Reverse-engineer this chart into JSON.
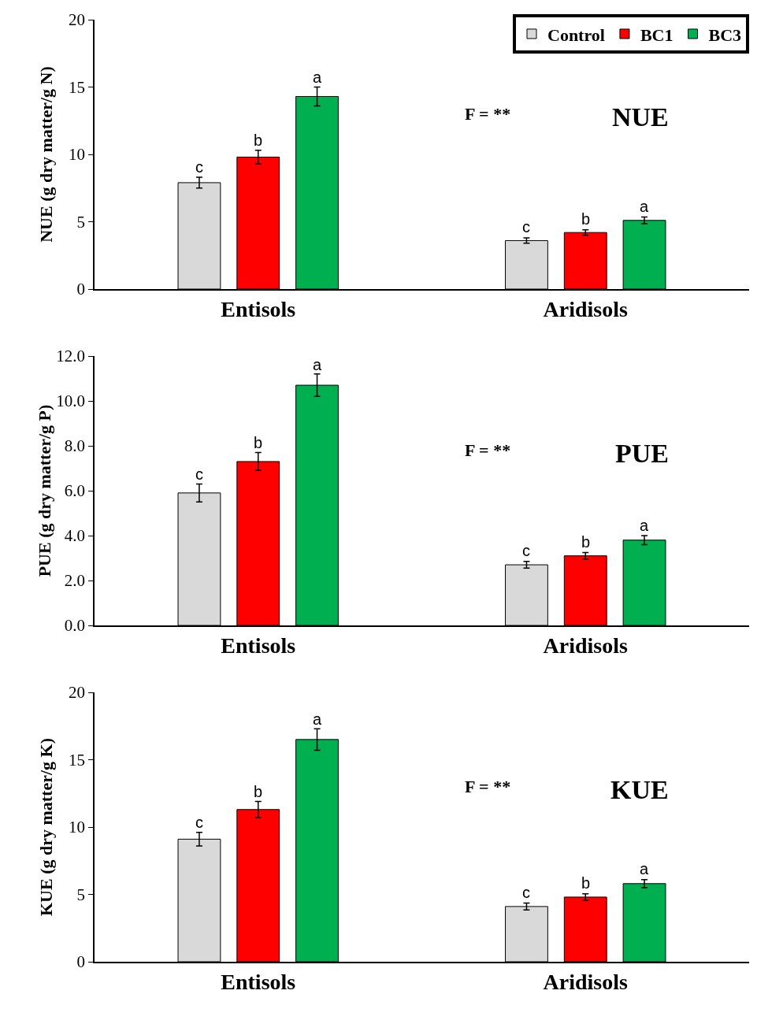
{
  "chart_data": [
    {
      "type": "bar",
      "ylabel": "NUE (g dry matter/g N)",
      "categories": [
        "Entisols",
        "Aridisols"
      ],
      "ylim": [
        0,
        20
      ],
      "yticks": [
        0,
        5,
        10,
        15,
        20
      ],
      "grid": false,
      "legend": "top right",
      "series": [
        {
          "name": "Control",
          "color": "#d9d9d9",
          "values": [
            7.9,
            3.6
          ],
          "errors": [
            0.4,
            0.2
          ]
        },
        {
          "name": "BC1",
          "color": "#ff0000",
          "values": [
            9.8,
            4.2
          ],
          "errors": [
            0.5,
            0.2
          ]
        },
        {
          "name": "BC3",
          "color": "#00b050",
          "values": [
            14.3,
            5.1
          ],
          "errors": [
            0.7,
            0.25
          ]
        }
      ],
      "annotations": [
        "c",
        "b",
        "a",
        "c",
        "b",
        "a",
        "F = **",
        "NUE"
      ]
    },
    {
      "type": "bar",
      "ylabel": "PUE (g dry matter/g P)",
      "categories": [
        "Entisols",
        "Aridisols"
      ],
      "ylim": [
        0,
        12
      ],
      "yticks": [
        {
          "value": 0,
          "label": "0.0"
        },
        {
          "value": 2,
          "label": "2.0"
        },
        {
          "value": 4,
          "label": "4.0"
        },
        {
          "value": 6,
          "label": "6.0"
        },
        {
          "value": 8,
          "label": "8.0"
        },
        {
          "value": 10,
          "label": "10.0"
        },
        {
          "value": 12,
          "label": "12.0"
        }
      ],
      "grid": false,
      "series": [
        {
          "color": "#d9d9d9",
          "values": [
            5.9,
            2.7
          ],
          "errors": [
            0.4,
            0.15
          ]
        },
        {
          "color": "#ff0000",
          "values": [
            7.3,
            3.1
          ],
          "errors": [
            0.4,
            0.15
          ]
        },
        {
          "color": "#00b050",
          "values": [
            10.7,
            3.8
          ],
          "errors": [
            0.5,
            0.2
          ]
        }
      ],
      "annotations": [
        "c",
        "b",
        "a",
        "c",
        "b",
        "a",
        "F = **",
        "PUE"
      ]
    },
    {
      "type": "bar",
      "ylabel": "KUE (g dry matter/g K)",
      "categories": [
        "Entisols",
        "Aridisols"
      ],
      "ylim": [
        0,
        20
      ],
      "yticks": [
        0,
        5,
        10,
        15,
        20
      ],
      "grid": false,
      "series": [
        {
          "color": "#d9d9d9",
          "values": [
            9.1,
            4.1
          ],
          "errors": [
            0.5,
            0.25
          ]
        },
        {
          "color": "#ff0000",
          "values": [
            11.3,
            4.8
          ],
          "errors": [
            0.6,
            0.25
          ]
        },
        {
          "color": "#00b050",
          "values": [
            16.5,
            5.8
          ],
          "errors": [
            0.8,
            0.3
          ]
        }
      ],
      "annotations": [
        "c",
        "b",
        "a",
        "c",
        "b",
        "a",
        "F = **",
        "KUE"
      ]
    }
  ]
}
